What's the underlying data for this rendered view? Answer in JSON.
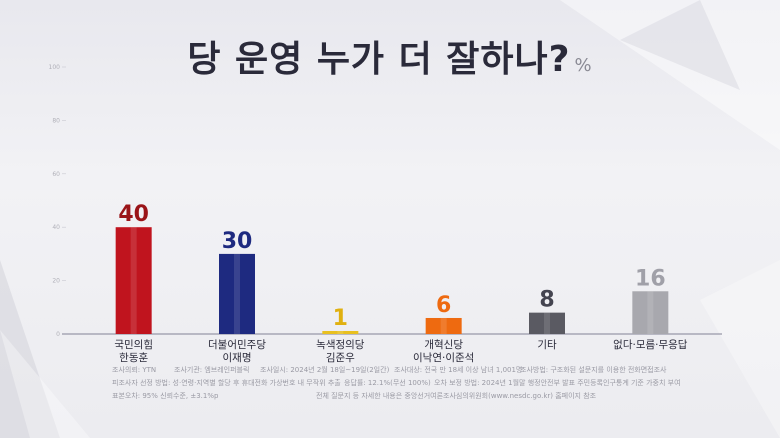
{
  "title": "당 운영 누가 더 잘하나?",
  "unit": "%",
  "chart_data": {
    "type": "bar",
    "categories": [
      "국민의힘\n한동훈",
      "더불어민주당\n이재명",
      "녹색정의당\n김준우",
      "개혁신당\n이낙연·이준석",
      "기타",
      "없다·모름·무응답"
    ],
    "values": [
      40,
      30,
      1,
      6,
      8,
      16
    ],
    "colors": [
      "#c0141e",
      "#1e2a80",
      "#e8c020",
      "#ee6a10",
      "#5a5a62",
      "#a8a8ae"
    ],
    "label_colors": [
      "#9a1418",
      "#1e2a80",
      "#e0b010",
      "#ee6a10",
      "#444450",
      "#a0a0a8"
    ],
    "ylim": [
      0,
      100
    ],
    "yticks": [
      0,
      20,
      40,
      60,
      80,
      100
    ],
    "grid": false
  },
  "footnotes": {
    "row1": [
      "조사의뢰: YTN",
      "조사기관: 엠브레인퍼블릭",
      "조사일시: 2024년 2월 18일~19일(2일간)",
      "조사대상: 전국 만 18세 이상 남녀 1,001명",
      "조사방법: 구조화된 설문지를 이용한 전화면접조사"
    ],
    "row2": [
      "피조사자 선정 방법: 성·연령·지역별 할당 후 휴대전화 가상번호 내 무작위 추출",
      "응답률: 12.1%(무선 100%)",
      "오차 보정 방법: 2024년 1월말 행정안전부 발표 주민등록인구통계 기준 가중치 부여"
    ],
    "row3": [
      "표본오차: 95% 신뢰수준, ±3.1%p",
      "전체 질문지 등 자세한 내용은 중앙선거여론조사심의위원회(www.nesdc.go.kr) 홈페이지 참조"
    ]
  }
}
